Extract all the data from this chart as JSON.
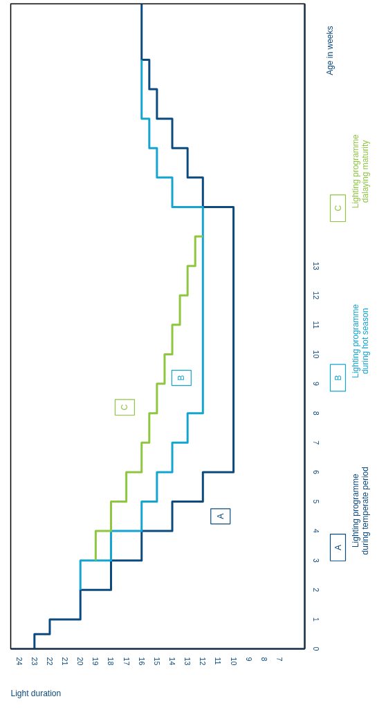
{
  "chart_data": {
    "type": "line",
    "xlabel": "Light duration",
    "ylabel": "Age in weeks",
    "xlim": [
      24.55,
      5.35
    ],
    "ylim": [
      0,
      21.9
    ],
    "xticks": [
      24,
      23,
      22,
      21,
      20,
      19,
      18,
      17,
      16,
      15,
      14,
      13,
      12,
      11,
      10,
      9,
      8,
      7
    ],
    "yticks": [
      0,
      1,
      2,
      3,
      4,
      5,
      6,
      7,
      8,
      9,
      10,
      11,
      12,
      13
    ],
    "grid": false,
    "legend": "right",
    "line_style": "solid",
    "series": [
      {
        "name": "Lighting programme during temperate period",
        "color": "#0b4a7f",
        "x": [
          23,
          23,
          22,
          22,
          20,
          20,
          18,
          18,
          16,
          16,
          14,
          14,
          12,
          12,
          10,
          10,
          12,
          12,
          13,
          13,
          14,
          14,
          15,
          15,
          15.5,
          15.5,
          16,
          16
        ],
        "values": [
          0,
          0.5,
          0.5,
          1,
          1,
          2,
          2,
          3,
          3,
          4,
          4,
          5,
          5,
          6,
          6,
          15,
          15,
          16,
          16,
          17,
          17,
          18,
          18,
          19,
          19,
          20,
          20,
          21.9
        ]
      },
      {
        "name": "Lighting programme during hot season",
        "color": "#12a5d1",
        "x": [
          20,
          20,
          18,
          18,
          16,
          16,
          15,
          15,
          14,
          14,
          13,
          13,
          12,
          12,
          14,
          14,
          15,
          15,
          15.5,
          15.5,
          16,
          16
        ],
        "values": [
          2,
          3,
          3,
          4,
          4,
          5,
          5,
          6,
          6,
          7,
          7,
          8,
          8,
          15,
          15,
          16,
          16,
          17,
          17,
          18,
          18,
          20
        ]
      },
      {
        "name": "Lighting programme dalaying maturity",
        "color": "#8dc63f",
        "x": [
          19,
          19,
          18,
          18,
          17,
          17,
          16,
          16,
          15.5,
          15.5,
          15,
          15,
          14.5,
          14.5,
          14,
          14,
          13.5,
          13.5,
          13,
          13,
          12.5,
          12.5,
          12
        ],
        "values": [
          3,
          4,
          4,
          5,
          5,
          6,
          6,
          7,
          7,
          8,
          8,
          9,
          9,
          10,
          10,
          11,
          11,
          12,
          12,
          13,
          13,
          14,
          14
        ]
      }
    ],
    "annotations": [
      {
        "text": "A",
        "x": 10.85,
        "y": 4.5
      },
      {
        "text": "B",
        "x": 13.4,
        "y": 9.2
      },
      {
        "text": "C",
        "x": 17.1,
        "y": 8.2
      }
    ]
  }
}
